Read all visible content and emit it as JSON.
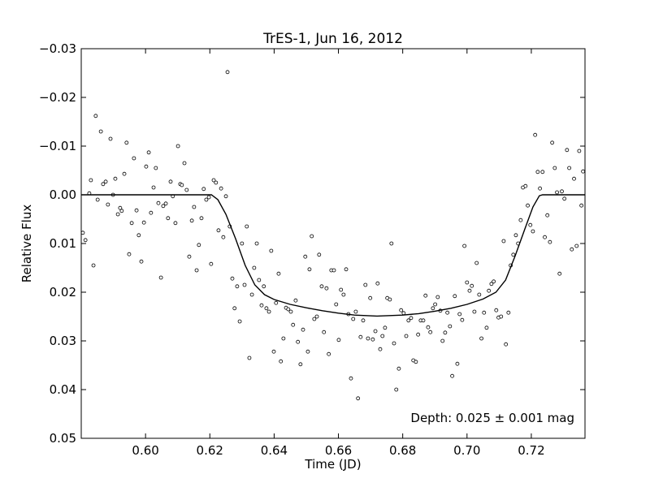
{
  "chart_data": {
    "type": "scatter",
    "title": "TrES-1, Jun 16, 2012",
    "x_label": "Time (JD)",
    "y_label": "Relative Flux",
    "annotation": "Depth: 0.025 ± 0.001 mag",
    "xlim": [
      0.58,
      0.7367
    ],
    "ylim": [
      0.05,
      -0.03
    ],
    "xticks": [
      {
        "value": 0.6,
        "label": "0.60"
      },
      {
        "value": 0.62,
        "label": "0.62"
      },
      {
        "value": 0.64,
        "label": "0.64"
      },
      {
        "value": 0.66,
        "label": "0.66"
      },
      {
        "value": 0.68,
        "label": "0.68"
      },
      {
        "value": 0.7,
        "label": "0.70"
      },
      {
        "value": 0.72,
        "label": "0.72"
      }
    ],
    "yticks": [
      {
        "value": -0.03,
        "label": "−0.03"
      },
      {
        "value": -0.02,
        "label": "−0.02"
      },
      {
        "value": -0.01,
        "label": "−0.01"
      },
      {
        "value": 0,
        "label": "0.00"
      },
      {
        "value": 0.01,
        "label": "0.01"
      },
      {
        "value": 0.02,
        "label": "0.02"
      },
      {
        "value": 0.03,
        "label": "0.03"
      },
      {
        "value": 0.04,
        "label": "0.04"
      },
      {
        "value": 0.05,
        "label": "0.05"
      }
    ],
    "series": [
      {
        "type": "scatter",
        "color": "#000000",
        "x": [
          0.5805,
          0.5813,
          0.5825,
          0.583,
          0.5838,
          0.5845,
          0.5851,
          0.5861,
          0.5868,
          0.5876,
          0.5883,
          0.5891,
          0.5899,
          0.5906,
          0.5914,
          0.5921,
          0.5926,
          0.5934,
          0.5941,
          0.5949,
          0.5957,
          0.5964,
          0.5972,
          0.5979,
          0.5987,
          0.5995,
          0.6002,
          0.601,
          0.6017,
          0.6025,
          0.6032,
          0.604,
          0.6048,
          0.6055,
          0.6063,
          0.607,
          0.6078,
          0.6085,
          0.6093,
          0.6101,
          0.6108,
          0.6113,
          0.6121,
          0.6128,
          0.6136,
          0.6144,
          0.6151,
          0.6159,
          0.6166,
          0.6174,
          0.6181,
          0.6189,
          0.6197,
          0.6204,
          0.6212,
          0.6219,
          0.6227,
          0.6235,
          0.6242,
          0.625,
          0.6255,
          0.6262,
          0.627,
          0.6277,
          0.6285,
          0.6293,
          0.63,
          0.6308,
          0.6315,
          0.6323,
          0.6331,
          0.6338,
          0.6346,
          0.6353,
          0.6361,
          0.6368,
          0.6376,
          0.6384,
          0.6391,
          0.6399,
          0.6406,
          0.6414,
          0.6421,
          0.6429,
          0.6437,
          0.6444,
          0.6452,
          0.6459,
          0.6467,
          0.6474,
          0.6482,
          0.649,
          0.6497,
          0.6505,
          0.651,
          0.6517,
          0.6525,
          0.6533,
          0.654,
          0.6548,
          0.6555,
          0.6563,
          0.657,
          0.6578,
          0.6586,
          0.6593,
          0.6601,
          0.6608,
          0.6616,
          0.6624,
          0.6631,
          0.6639,
          0.6646,
          0.6654,
          0.6661,
          0.6669,
          0.6677,
          0.6684,
          0.6692,
          0.6699,
          0.6707,
          0.6715,
          0.6722,
          0.673,
          0.6737,
          0.6745,
          0.6752,
          0.676,
          0.6765,
          0.6773,
          0.678,
          0.6788,
          0.6795,
          0.6803,
          0.6811,
          0.6818,
          0.6826,
          0.6833,
          0.6841,
          0.6848,
          0.6856,
          0.6864,
          0.6871,
          0.6879,
          0.6886,
          0.6894,
          0.6901,
          0.6909,
          0.6917,
          0.6924,
          0.6932,
          0.6939,
          0.6947,
          0.6954,
          0.6962,
          0.697,
          0.6977,
          0.6985,
          0.6992,
          0.7,
          0.7008,
          0.7015,
          0.7023,
          0.703,
          0.7038,
          0.7045,
          0.7053,
          0.7061,
          0.7068,
          0.7076,
          0.7083,
          0.7091,
          0.7098,
          0.7106,
          0.7114,
          0.7121,
          0.7129,
          0.7136,
          0.7144,
          0.7152,
          0.7159,
          0.7167,
          0.7174,
          0.7182,
          0.7189,
          0.7197,
          0.7205,
          0.7212,
          0.722,
          0.7227,
          0.7235,
          0.7242,
          0.725,
          0.7258,
          0.7265,
          0.7273,
          0.728,
          0.7288,
          0.7295,
          0.7303,
          0.7311,
          0.7318,
          0.7326,
          0.7333,
          0.7341,
          0.7349,
          0.7356,
          0.7361
        ],
        "values": [
          0.0078,
          0.0093,
          -0.0003,
          -0.003,
          0.0145,
          -0.0162,
          0.001,
          -0.013,
          -0.0022,
          -0.0027,
          0.002,
          -0.0115,
          0,
          -0.0033,
          0.004,
          0.0027,
          0.0033,
          -0.0043,
          -0.0107,
          0.0122,
          0.0058,
          -0.0075,
          0.0032,
          0.0083,
          0.0137,
          0.0057,
          -0.0058,
          -0.0087,
          0.0037,
          -0.0015,
          -0.0055,
          0.0017,
          0.017,
          0.0023,
          0.0018,
          0.0048,
          -0.0027,
          0.0003,
          0.0058,
          -0.01,
          -0.0022,
          -0.002,
          -0.0065,
          -0.001,
          0.0127,
          0.0053,
          0.0025,
          0.0155,
          0.0103,
          0.0048,
          -0.0012,
          0.001,
          0.0005,
          0.0142,
          -0.003,
          -0.0025,
          0.0073,
          -0.0013,
          0.0087,
          0.0003,
          -0.0252,
          0.0065,
          0.0172,
          0.0233,
          0.0188,
          0.026,
          0.01,
          0.0185,
          0.0065,
          0.0335,
          0.0205,
          0.015,
          0.01,
          0.0175,
          0.0227,
          0.0188,
          0.0233,
          0.024,
          0.0115,
          0.0322,
          0.0222,
          0.0162,
          0.0342,
          0.0295,
          0.0232,
          0.0235,
          0.024,
          0.0267,
          0.0217,
          0.0302,
          0.0348,
          0.0277,
          0.0127,
          0.0322,
          0.0153,
          0.0085,
          0.0255,
          0.025,
          0.0123,
          0.0188,
          0.0282,
          0.0192,
          0.0327,
          0.0155,
          0.0155,
          0.0225,
          0.0298,
          0.0195,
          0.0205,
          0.0153,
          0.0245,
          0.0377,
          0.0255,
          0.024,
          0.0418,
          0.0292,
          0.0258,
          0.0185,
          0.0295,
          0.0212,
          0.0297,
          0.028,
          0.0182,
          0.0317,
          0.029,
          0.0273,
          0.0212,
          0.0215,
          0.01,
          0.0305,
          0.04,
          0.0357,
          0.0237,
          0.0243,
          0.029,
          0.0258,
          0.0253,
          0.034,
          0.0343,
          0.0287,
          0.0258,
          0.0258,
          0.0207,
          0.0272,
          0.0282,
          0.0233,
          0.0225,
          0.021,
          0.0238,
          0.03,
          0.0283,
          0.0242,
          0.027,
          0.0372,
          0.0208,
          0.0347,
          0.0245,
          0.0257,
          0.0105,
          0.018,
          0.0197,
          0.0187,
          0.024,
          0.014,
          0.0205,
          0.0295,
          0.0242,
          0.0273,
          0.0197,
          0.0183,
          0.0178,
          0.0237,
          0.0252,
          0.025,
          0.0095,
          0.0307,
          0.0242,
          0.0145,
          0.0123,
          0.0083,
          0.01,
          0.0052,
          -0.0015,
          -0.0018,
          0.0022,
          0.0062,
          0.0075,
          -0.0123,
          -0.0047,
          -0.0013,
          -0.0047,
          0.0087,
          0.0042,
          0.0097,
          -0.0107,
          -0.0055,
          -0.0005,
          0.0162,
          -0.0007,
          0.0008,
          -0.0092,
          -0.0055,
          0.0112,
          -0.0033,
          0.0105,
          -0.009,
          0.0022,
          -0.0048
        ]
      },
      {
        "type": "line",
        "color": "#000000",
        "x": [
          0.58,
          0.6205,
          0.6225,
          0.625,
          0.628,
          0.631,
          0.634,
          0.637,
          0.64,
          0.645,
          0.65,
          0.655,
          0.66,
          0.665,
          0.672,
          0.68,
          0.685,
          0.69,
          0.695,
          0.7,
          0.705,
          0.709,
          0.712,
          0.715,
          0.718,
          0.7205,
          0.7225,
          0.7235,
          0.7367
        ],
        "values": [
          0,
          0,
          0.001,
          0.004,
          0.009,
          0.0145,
          0.0185,
          0.0205,
          0.0215,
          0.0225,
          0.0232,
          0.0238,
          0.0243,
          0.0247,
          0.0249,
          0.0247,
          0.0244,
          0.0239,
          0.0233,
          0.0225,
          0.0214,
          0.02,
          0.0175,
          0.0125,
          0.007,
          0.0025,
          0.0002,
          0,
          0
        ]
      }
    ]
  }
}
